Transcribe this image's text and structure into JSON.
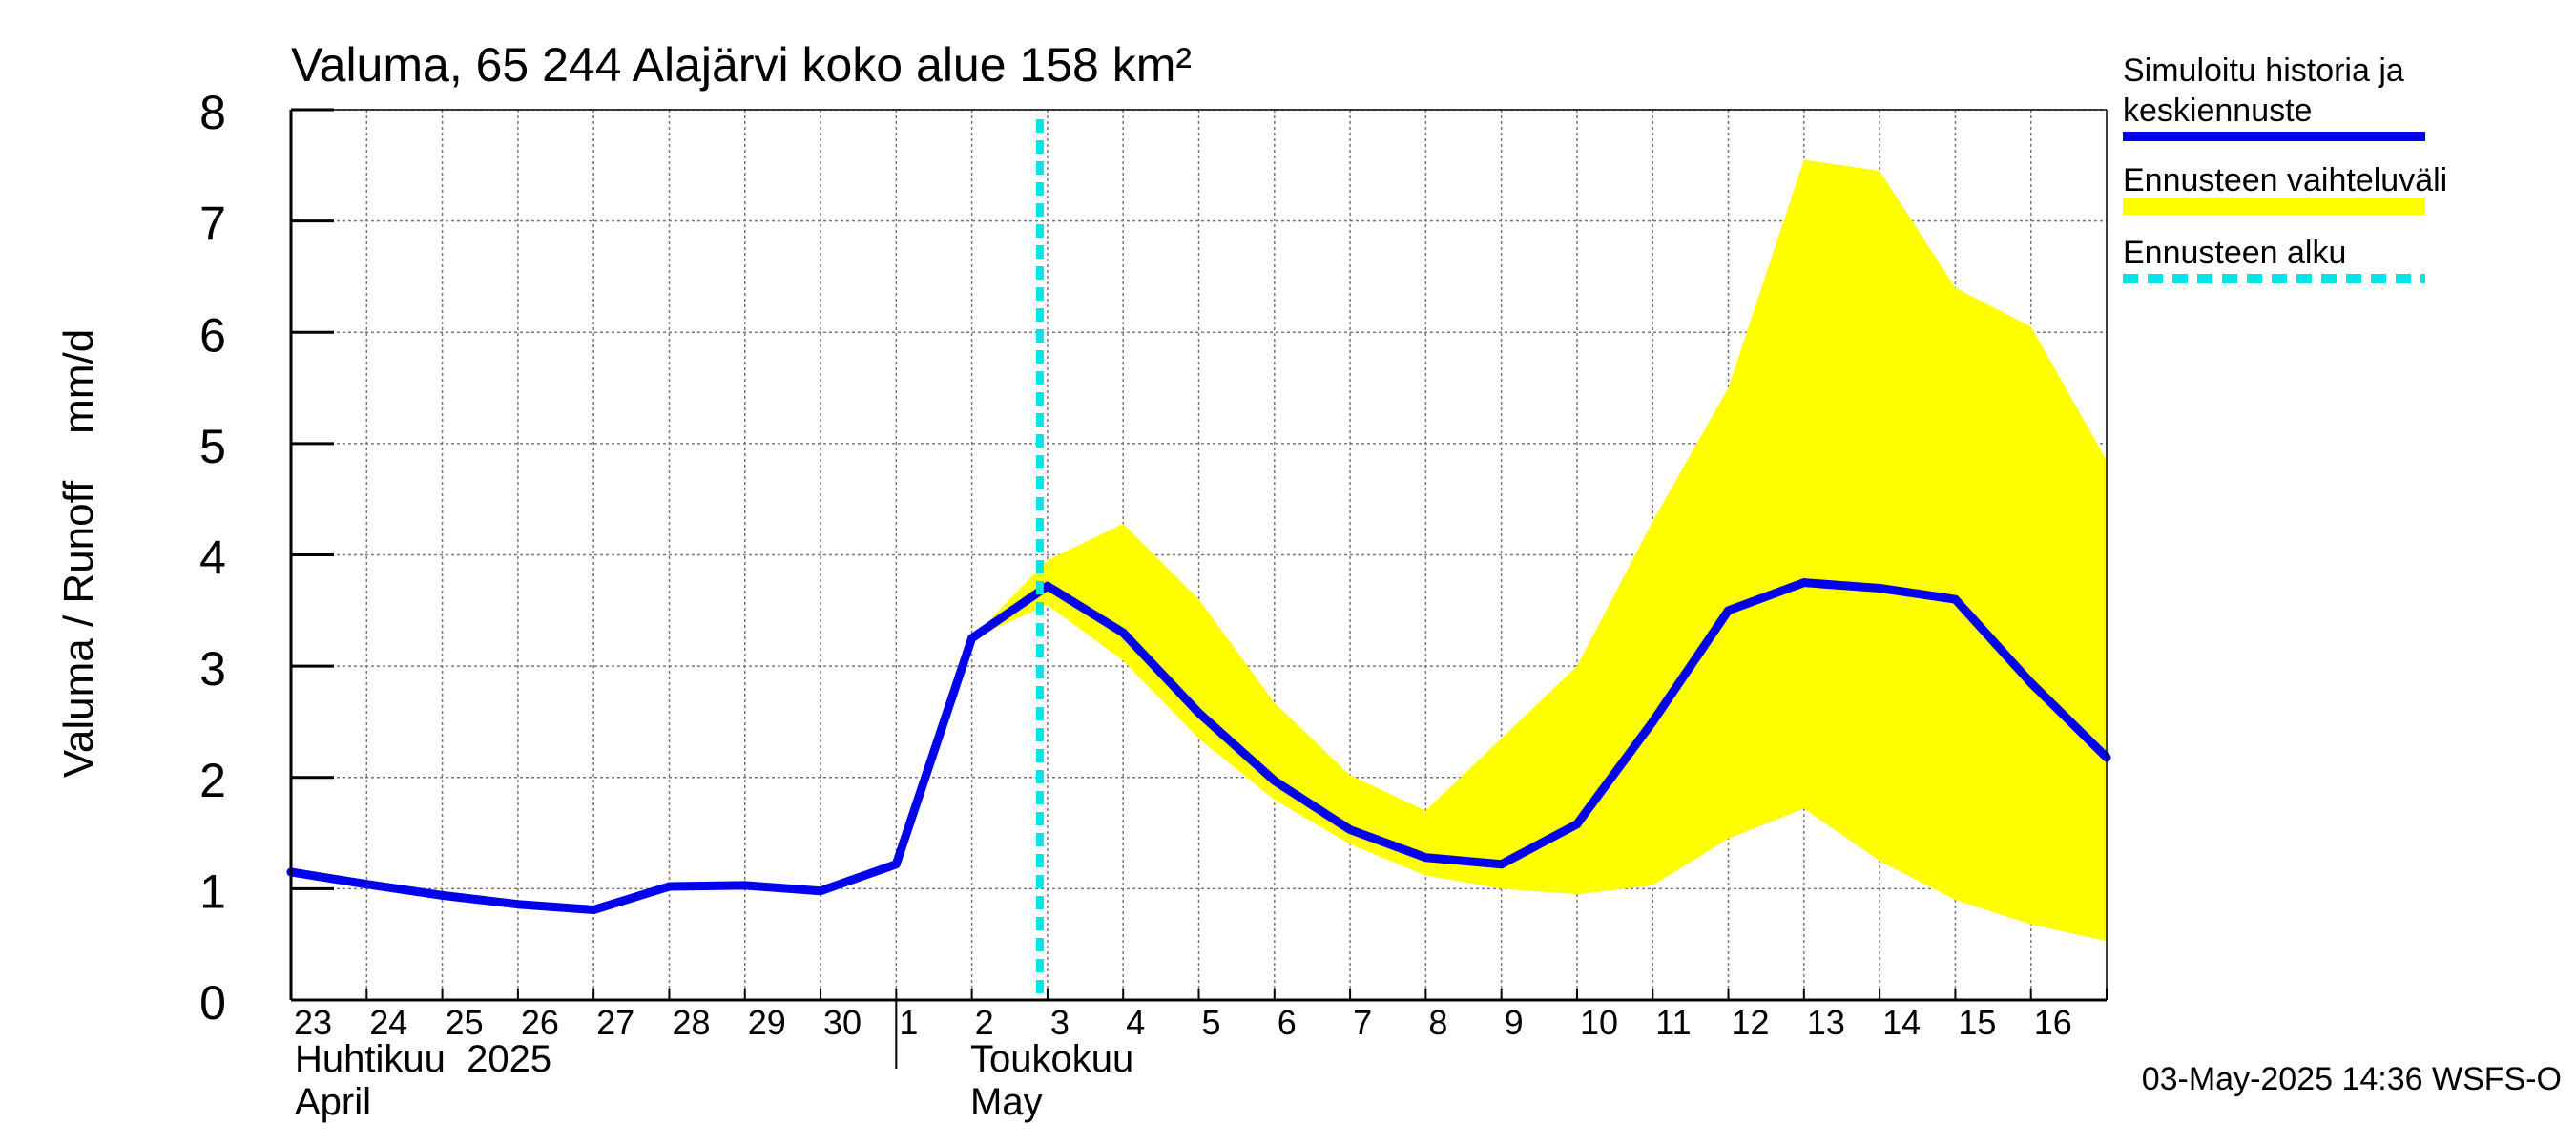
{
  "chart_data": {
    "type": "line",
    "title": "Valuma, 65 244 Alajärvi koko alue 158 km²",
    "ylabel": "Valuma / Runoff    mm/d",
    "ylim": [
      0,
      8
    ],
    "yticks": [
      0,
      1,
      2,
      3,
      4,
      5,
      6,
      7,
      8
    ],
    "grid": true,
    "x_day_labels": [
      "23",
      "24",
      "25",
      "26",
      "27",
      "28",
      "29",
      "30",
      "1",
      "2",
      "3",
      "4",
      "5",
      "6",
      "7",
      "8",
      "9",
      "10",
      "11",
      "12",
      "13",
      "14",
      "15",
      "16"
    ],
    "month_labels": [
      {
        "fi": "Huhtikuu  2025",
        "en": "April"
      },
      {
        "fi": "Toukokuu",
        "en": "May"
      }
    ],
    "forecast_start_day_index": 10,
    "series": [
      {
        "name": "Simuloitu historia ja keskiennuste",
        "color": "#0000ee",
        "values": [
          1.15,
          1.04,
          0.94,
          0.86,
          0.81,
          1.02,
          1.03,
          0.98,
          1.22,
          3.25,
          3.72,
          3.3,
          2.58,
          1.97,
          1.53,
          1.28,
          1.22,
          1.58,
          2.5,
          3.5,
          3.75,
          3.7,
          3.6,
          2.85,
          2.18
        ]
      },
      {
        "name": "Ennusteen vaihteluväli",
        "color": "#ffff00",
        "start_index": 9,
        "upper": [
          3.25,
          3.95,
          4.28,
          3.6,
          2.67,
          2.02,
          1.7,
          2.35,
          3.0,
          4.3,
          5.5,
          7.55,
          7.45,
          6.4,
          6.05,
          4.85
        ],
        "lower": [
          3.25,
          3.55,
          3.05,
          2.35,
          1.8,
          1.4,
          1.12,
          1.0,
          0.95,
          1.03,
          1.45,
          1.72,
          1.25,
          0.9,
          0.68,
          0.53
        ]
      }
    ],
    "legend": {
      "placement": "right",
      "entries": [
        {
          "label_lines": [
            "Simuloitu historia ja",
            "keskiennuste"
          ],
          "color": "#0000ee",
          "style": "solid"
        },
        {
          "label_lines": [
            "Ennusteen vaihteluväli"
          ],
          "color": "#ffff00",
          "style": "solid"
        },
        {
          "label_lines": [
            "Ennusteen alku"
          ],
          "color": "#00e5e5",
          "style": "dashed"
        }
      ]
    },
    "footer": "03-May-2025 14:36 WSFS-O"
  }
}
